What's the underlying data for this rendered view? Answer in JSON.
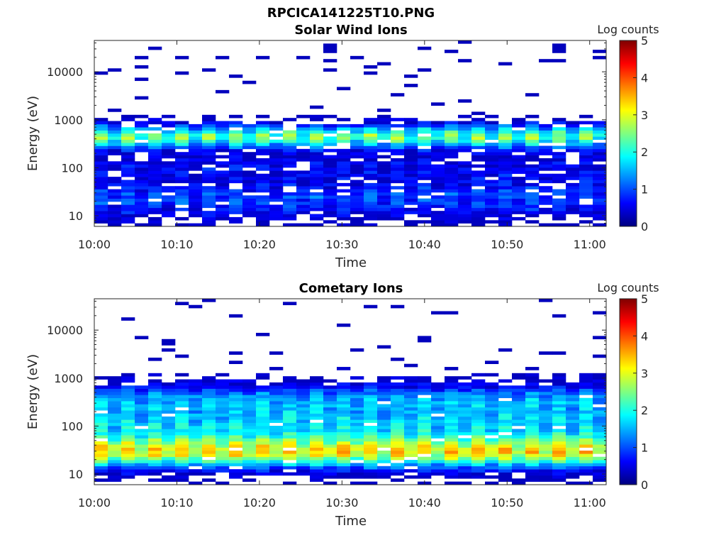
{
  "figure": {
    "title": "RPCICA141225T10.PNG"
  },
  "chart_data": [
    {
      "type": "heatmap",
      "title": "Solar Wind Ions",
      "xlabel": "Time",
      "ylabel": "Energy (eV)",
      "x_ticks": [
        "10:00",
        "10:10",
        "10:20",
        "10:30",
        "10:40",
        "10:50",
        "11:00"
      ],
      "x_range_minutes": [
        0,
        62
      ],
      "y_scale": "log",
      "y_ticks": [
        10,
        100,
        1000,
        10000
      ],
      "y_tick_labels": [
        "10",
        "100",
        "1000",
        "10000"
      ],
      "y_range_ev": [
        6,
        45000
      ],
      "colorbar": {
        "label": "Log counts",
        "range": [
          0,
          5
        ],
        "ticks": [
          "0",
          "1",
          "2",
          "3",
          "4",
          "5"
        ],
        "colormap": "jet"
      },
      "observation": "Peak log counts about 2.5-3 near 300-700 eV; sparse low counts above 1000 eV; moderate counts 10-100 eV"
    },
    {
      "type": "heatmap",
      "title": "Cometary Ions",
      "xlabel": "Time",
      "ylabel": "Energy (eV)",
      "x_ticks": [
        "10:00",
        "10:10",
        "10:20",
        "10:30",
        "10:40",
        "10:50",
        "11:00"
      ],
      "x_range_minutes": [
        0,
        62
      ],
      "y_scale": "log",
      "y_ticks": [
        10,
        100,
        1000,
        10000
      ],
      "y_tick_labels": [
        "10",
        "100",
        "1000",
        "10000"
      ],
      "y_range_ev": [
        6,
        45000
      ],
      "colorbar": {
        "label": "Log counts",
        "range": [
          0,
          5
        ],
        "ticks": [
          "0",
          "1",
          "2",
          "3",
          "4",
          "5"
        ],
        "colormap": "jet"
      },
      "observation": "Peak log counts about 2.5-3 near 15-40 eV; counts 1.5-2.5 between 40-600 eV; sparse low counts above 1000 eV"
    }
  ]
}
